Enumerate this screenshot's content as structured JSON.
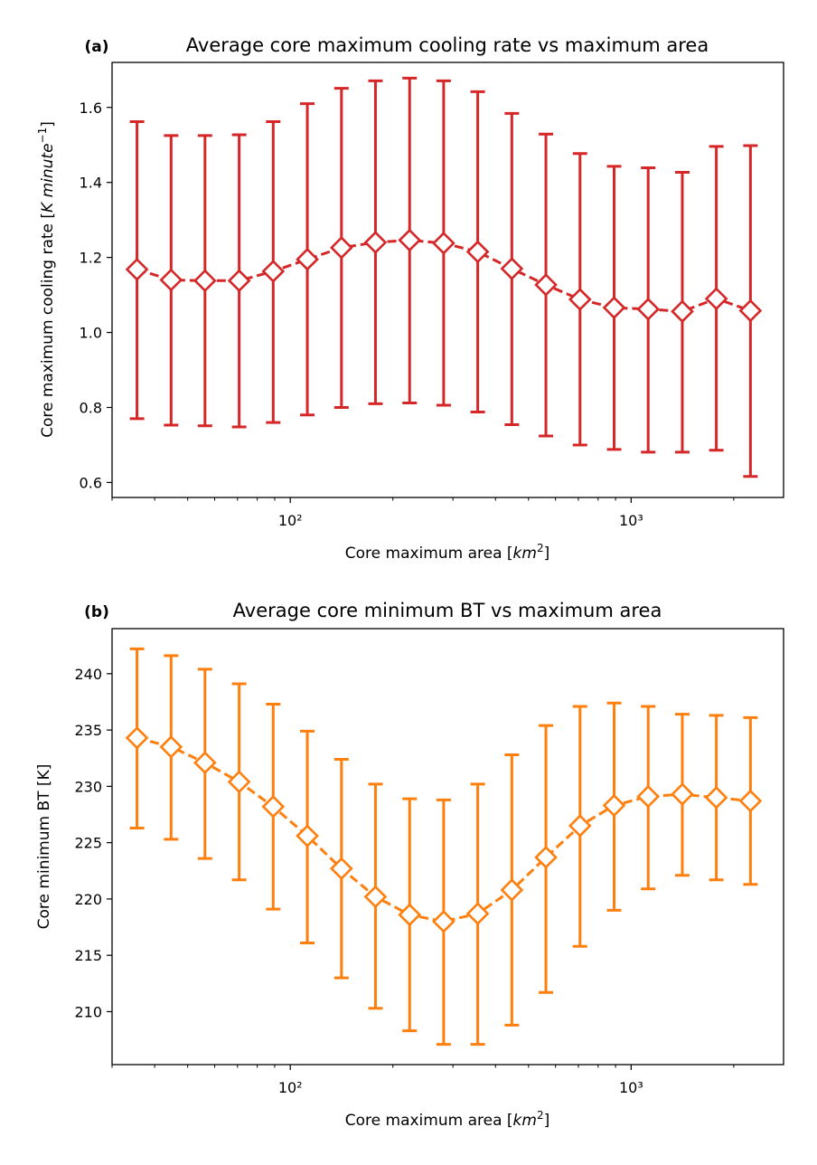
{
  "chart_data": [
    {
      "type": "line",
      "panel_label": "(a)",
      "title": "Average core maximum cooling rate vs maximum area",
      "xlabel": "Core maximum area [km²]",
      "ylabel": "Core maximum cooling rate [K minute⁻¹]",
      "xscale": "log",
      "xlim": [
        30,
        2800
      ],
      "ylim": [
        0.56,
        1.72
      ],
      "yticks": [
        0.6,
        0.8,
        1.0,
        1.2,
        1.4,
        1.6
      ],
      "ytick_labels": [
        "0.6",
        "0.8",
        "1.0",
        "1.2",
        "1.4",
        "1.6"
      ],
      "xticks": [
        100,
        1000
      ],
      "xtick_labels": [
        "10²",
        "10³"
      ],
      "color": "#d62728",
      "marker": "diamond",
      "linestyle": "dashed",
      "x": [
        35.5,
        44.7,
        56.2,
        70.8,
        89.1,
        112.2,
        141.3,
        177.8,
        223.9,
        281.8,
        354.8,
        446.7,
        562.3,
        707.9,
        891.3,
        1122,
        1413,
        1778,
        2239
      ],
      "y": [
        1.168,
        1.14,
        1.138,
        1.138,
        1.163,
        1.195,
        1.226,
        1.24,
        1.246,
        1.238,
        1.215,
        1.17,
        1.127,
        1.088,
        1.066,
        1.062,
        1.056,
        1.09,
        1.058
      ],
      "err_low": [
        0.77,
        0.753,
        0.751,
        0.748,
        0.76,
        0.78,
        0.8,
        0.81,
        0.812,
        0.806,
        0.788,
        0.754,
        0.724,
        0.7,
        0.688,
        0.681,
        0.681,
        0.686,
        0.616
      ],
      "err_high": [
        1.562,
        1.525,
        1.525,
        1.527,
        1.562,
        1.61,
        1.651,
        1.671,
        1.678,
        1.671,
        1.642,
        1.584,
        1.529,
        1.477,
        1.443,
        1.439,
        1.427,
        1.496,
        1.498
      ]
    },
    {
      "type": "line",
      "panel_label": "(b)",
      "title": "Average core minimum BT vs maximum area",
      "xlabel": "Core maximum area [km²]",
      "ylabel": "Core minimum BT [K]",
      "xscale": "log",
      "xlim": [
        30,
        2800
      ],
      "ylim": [
        205.3,
        244.0
      ],
      "yticks": [
        210,
        215,
        220,
        225,
        230,
        235,
        240
      ],
      "ytick_labels": [
        "210",
        "215",
        "220",
        "225",
        "230",
        "235",
        "240"
      ],
      "xticks": [
        100,
        1000
      ],
      "xtick_labels": [
        "10²",
        "10³"
      ],
      "color": "#ff7f0e",
      "marker": "diamond",
      "linestyle": "dashed",
      "x": [
        35.5,
        44.7,
        56.2,
        70.8,
        89.1,
        112.2,
        141.3,
        177.8,
        223.9,
        281.8,
        354.8,
        446.7,
        562.3,
        707.9,
        891.3,
        1122,
        1413,
        1778,
        2239
      ],
      "y": [
        234.3,
        233.5,
        232.1,
        230.4,
        228.2,
        225.6,
        222.7,
        220.2,
        218.6,
        218.0,
        218.7,
        220.8,
        223.7,
        226.5,
        228.3,
        229.1,
        229.3,
        229.0,
        228.7
      ],
      "err_low": [
        226.3,
        225.3,
        223.6,
        221.7,
        219.1,
        216.1,
        213.0,
        210.3,
        208.3,
        207.1,
        207.1,
        208.8,
        211.7,
        215.8,
        219.0,
        220.9,
        222.1,
        221.7,
        221.3
      ],
      "err_high": [
        242.2,
        241.6,
        240.4,
        239.1,
        237.3,
        234.9,
        232.4,
        230.2,
        228.9,
        228.8,
        230.2,
        232.8,
        235.4,
        237.1,
        237.4,
        237.1,
        236.4,
        236.3,
        236.1
      ]
    }
  ]
}
